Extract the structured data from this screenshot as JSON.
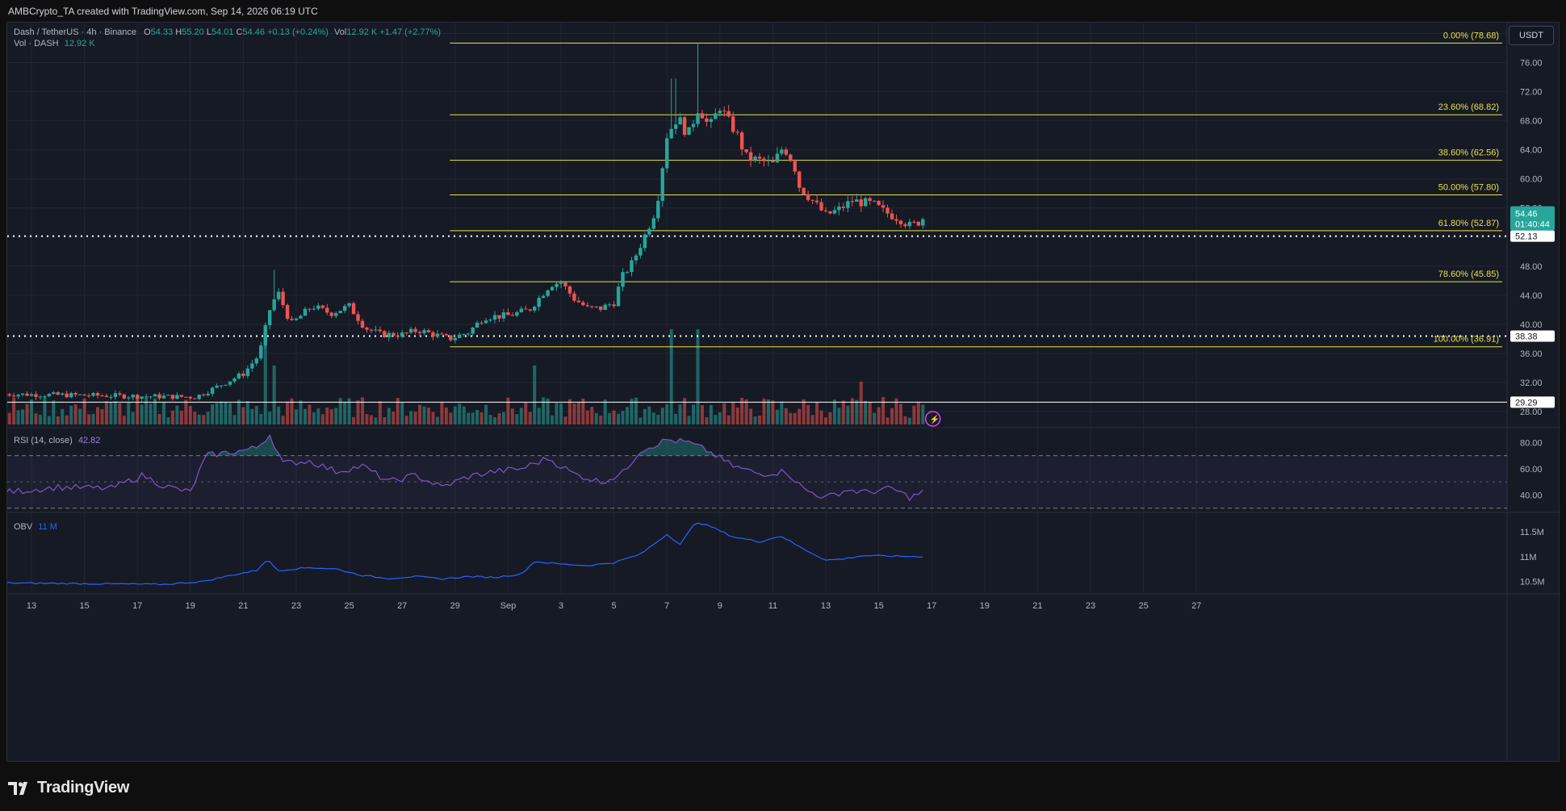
{
  "header": {
    "caption": "AMBCrypto_TA created with TradingView.com, Sep 14, 2026 06:19 UTC"
  },
  "symbol_legend": {
    "name": "Dash / TetherUS · 4h · Binance",
    "o_label": "O",
    "o": "54.33",
    "h_label": "H",
    "h": "55.20",
    "l_label": "L",
    "l": "54.01",
    "c_label": "C",
    "c": "54.46",
    "change": "+0.13 (+0.24%)",
    "vol_label": "Vol",
    "vol": "12.92 K",
    "vol_change": "+1.47 (+2.77%)"
  },
  "volume_legend": {
    "label": "Vol · DASH",
    "value": "12.92 K"
  },
  "rsi_legend": {
    "label": "RSI (14, close)",
    "value": "42.82"
  },
  "obv_legend": {
    "label": "OBV",
    "value": "11 M"
  },
  "currency_button": "USDT",
  "price_tags": {
    "last_price": "54.46",
    "countdown": "01:40:44",
    "level_upper": "52.13",
    "level_middle": "38.38",
    "level_lower": "29.29"
  },
  "brand": {
    "name": "TradingView"
  },
  "colors": {
    "background": "#161a25",
    "up": "#26a69a",
    "down": "#ef5350",
    "fib_line": "#e8e04a",
    "rsi_line": "#7e57c2",
    "obv_line": "#2962ff",
    "grid": "#232632"
  },
  "chart_data": [
    {
      "type": "candlestick",
      "title": "Dash / TetherUS · 4h · Binance",
      "x_axis_labels": [
        "13",
        "15",
        "17",
        "19",
        "21",
        "23",
        "25",
        "27",
        "29",
        "Sep",
        "3",
        "5",
        "7",
        "9",
        "11",
        "13",
        "15",
        "17",
        "19",
        "21",
        "23",
        "25",
        "27"
      ],
      "y_ticks": [
        "28.00",
        "32.00",
        "36.00",
        "40.00",
        "44.00",
        "48.00",
        "52.00",
        "56.00",
        "60.00",
        "64.00",
        "68.00",
        "72.00",
        "76.00",
        "80.00"
      ],
      "ylim": [
        26,
        81.5
      ],
      "last": {
        "o": 54.33,
        "h": 55.2,
        "l": 54.01,
        "c": 54.46
      },
      "fibonacci_levels": [
        {
          "label": "0.00% (78.68)",
          "value": 78.68
        },
        {
          "label": "23.60% (68.82)",
          "value": 68.82
        },
        {
          "label": "38.60% (62.56)",
          "value": 62.56
        },
        {
          "label": "50.00% (57.80)",
          "value": 57.8
        },
        {
          "label": "61.80% (52.87)",
          "value": 52.87
        },
        {
          "label": "78.60% (45.85)",
          "value": 45.85
        },
        {
          "label": "100.00% (36.91)",
          "value": 36.91
        }
      ],
      "horizontal_levels": [
        52.13,
        38.38,
        29.29
      ],
      "price_anchors": [
        {
          "day": 12.0,
          "price": 30.4
        },
        {
          "day": 19.2,
          "price": 30.0
        },
        {
          "day": 20.0,
          "price": 31.4
        },
        {
          "day": 21.0,
          "price": 33.2
        },
        {
          "day": 21.6,
          "price": 35.8
        },
        {
          "day": 22.0,
          "price": 42.0
        },
        {
          "day": 22.3,
          "price": 44.5
        },
        {
          "day": 22.8,
          "price": 40.0
        },
        {
          "day": 23.6,
          "price": 42.5
        },
        {
          "day": 24.3,
          "price": 41.5
        },
        {
          "day": 25.0,
          "price": 42.5
        },
        {
          "day": 25.6,
          "price": 39.5
        },
        {
          "day": 26.2,
          "price": 38.6
        },
        {
          "day": 27.0,
          "price": 38.6
        },
        {
          "day": 27.6,
          "price": 39.2
        },
        {
          "day": 28.3,
          "price": 38.5
        },
        {
          "day": 28.8,
          "price": 38.0
        },
        {
          "day": 29.5,
          "price": 38.9
        },
        {
          "day": 30.1,
          "price": 41.0
        },
        {
          "day": 31.0,
          "price": 41.2
        },
        {
          "day": 31.8,
          "price": 42.0
        },
        {
          "day": 32.6,
          "price": 45.5
        },
        {
          "day": 33.0,
          "price": 45.8
        },
        {
          "day": 33.5,
          "price": 43.5
        },
        {
          "day": 34.0,
          "price": 42.2
        },
        {
          "day": 34.5,
          "price": 42.2
        },
        {
          "day": 35.0,
          "price": 43.0
        },
        {
          "day": 35.3,
          "price": 46.5
        },
        {
          "day": 35.7,
          "price": 48.5
        },
        {
          "day": 36.2,
          "price": 52.5
        },
        {
          "day": 36.6,
          "price": 56.0
        },
        {
          "day": 37.0,
          "price": 66.0
        },
        {
          "day": 37.4,
          "price": 68.5
        },
        {
          "day": 37.8,
          "price": 66.0
        },
        {
          "day": 38.2,
          "price": 70.0
        },
        {
          "day": 38.6,
          "price": 67.0
        },
        {
          "day": 39.0,
          "price": 70.0
        },
        {
          "day": 39.3,
          "price": 68.0
        },
        {
          "day": 39.6,
          "price": 66.5
        },
        {
          "day": 40.0,
          "price": 63.0
        },
        {
          "day": 40.5,
          "price": 62.5
        },
        {
          "day": 41.0,
          "price": 62.0
        },
        {
          "day": 41.4,
          "price": 64.5
        },
        {
          "day": 41.8,
          "price": 62.0
        },
        {
          "day": 42.0,
          "price": 59.0
        },
        {
          "day": 42.5,
          "price": 57.0
        },
        {
          "day": 43.0,
          "price": 55.0
        },
        {
          "day": 43.5,
          "price": 55.8
        },
        {
          "day": 44.0,
          "price": 57.0
        },
        {
          "day": 44.8,
          "price": 56.5
        },
        {
          "day": 45.2,
          "price": 55.5
        },
        {
          "day": 45.8,
          "price": 54.5
        },
        {
          "day": 46.2,
          "price": 53.5
        },
        {
          "day": 46.7,
          "price": 54.46
        }
      ],
      "volume_spikes": [
        {
          "day": 21.9,
          "height": 1.0
        },
        {
          "day": 22.2,
          "height": 0.62
        },
        {
          "day": 32.0,
          "height": 0.62
        },
        {
          "day": 37.1,
          "height": 1.0
        },
        {
          "day": 38.1,
          "height": 1.0
        },
        {
          "day": 44.4,
          "height": 0.45
        }
      ]
    },
    {
      "type": "line",
      "title": "RSI (14, close)",
      "y_ticks": [
        "40.00",
        "60.00",
        "80.00"
      ],
      "ylim": [
        28,
        90
      ],
      "band": [
        30,
        70
      ],
      "midline": 50,
      "last_value": 42.82,
      "anchors": [
        {
          "day": 12.0,
          "value": 42
        },
        {
          "day": 14.0,
          "value": 46
        },
        {
          "day": 16.0,
          "value": 45
        },
        {
          "day": 17.2,
          "value": 55
        },
        {
          "day": 18.0,
          "value": 47
        },
        {
          "day": 19.0,
          "value": 42
        },
        {
          "day": 19.6,
          "value": 70
        },
        {
          "day": 21.0,
          "value": 74
        },
        {
          "day": 21.5,
          "value": 76
        },
        {
          "day": 22.0,
          "value": 86
        },
        {
          "day": 22.5,
          "value": 64
        },
        {
          "day": 23.5,
          "value": 66
        },
        {
          "day": 24.5,
          "value": 58
        },
        {
          "day": 25.5,
          "value": 62
        },
        {
          "day": 26.5,
          "value": 50
        },
        {
          "day": 27.5,
          "value": 55
        },
        {
          "day": 28.5,
          "value": 46
        },
        {
          "day": 29.5,
          "value": 54
        },
        {
          "day": 30.5,
          "value": 58
        },
        {
          "day": 31.5,
          "value": 60
        },
        {
          "day": 32.5,
          "value": 68
        },
        {
          "day": 33.5,
          "value": 56
        },
        {
          "day": 34.5,
          "value": 50
        },
        {
          "day": 35.3,
          "value": 56
        },
        {
          "day": 36.0,
          "value": 74
        },
        {
          "day": 37.0,
          "value": 82
        },
        {
          "day": 37.8,
          "value": 80
        },
        {
          "day": 38.5,
          "value": 74
        },
        {
          "day": 39.5,
          "value": 62
        },
        {
          "day": 40.5,
          "value": 56
        },
        {
          "day": 41.5,
          "value": 58
        },
        {
          "day": 42.2,
          "value": 44
        },
        {
          "day": 43.0,
          "value": 38
        },
        {
          "day": 43.8,
          "value": 44
        },
        {
          "day": 44.5,
          "value": 42
        },
        {
          "day": 45.5,
          "value": 45
        },
        {
          "day": 46.2,
          "value": 38
        },
        {
          "day": 46.7,
          "value": 42.82
        }
      ]
    },
    {
      "type": "line",
      "title": "OBV",
      "y_ticks": [
        "10.5M",
        "11M",
        "11.5M"
      ],
      "ylim": [
        10.28,
        11.86
      ],
      "last_value": 11.0,
      "anchors": [
        {
          "day": 12.0,
          "value": 10.47
        },
        {
          "day": 18.0,
          "value": 10.44
        },
        {
          "day": 19.5,
          "value": 10.5
        },
        {
          "day": 20.5,
          "value": 10.62
        },
        {
          "day": 21.5,
          "value": 10.72
        },
        {
          "day": 21.9,
          "value": 10.95
        },
        {
          "day": 22.3,
          "value": 10.72
        },
        {
          "day": 23.5,
          "value": 10.78
        },
        {
          "day": 24.5,
          "value": 10.75
        },
        {
          "day": 25.5,
          "value": 10.62
        },
        {
          "day": 26.5,
          "value": 10.56
        },
        {
          "day": 27.5,
          "value": 10.6
        },
        {
          "day": 28.5,
          "value": 10.55
        },
        {
          "day": 29.5,
          "value": 10.6
        },
        {
          "day": 30.5,
          "value": 10.58
        },
        {
          "day": 31.5,
          "value": 10.65
        },
        {
          "day": 32.0,
          "value": 10.9
        },
        {
          "day": 33.0,
          "value": 10.85
        },
        {
          "day": 34.0,
          "value": 10.82
        },
        {
          "day": 35.0,
          "value": 10.88
        },
        {
          "day": 36.0,
          "value": 11.05
        },
        {
          "day": 37.0,
          "value": 11.45
        },
        {
          "day": 37.5,
          "value": 11.25
        },
        {
          "day": 38.1,
          "value": 11.7
        },
        {
          "day": 38.6,
          "value": 11.62
        },
        {
          "day": 39.5,
          "value": 11.4
        },
        {
          "day": 40.5,
          "value": 11.3
        },
        {
          "day": 41.3,
          "value": 11.42
        },
        {
          "day": 42.0,
          "value": 11.2
        },
        {
          "day": 43.0,
          "value": 10.93
        },
        {
          "day": 43.6,
          "value": 10.95
        },
        {
          "day": 44.4,
          "value": 11.02
        },
        {
          "day": 45.5,
          "value": 11.01
        },
        {
          "day": 46.7,
          "value": 11.0
        }
      ]
    }
  ]
}
